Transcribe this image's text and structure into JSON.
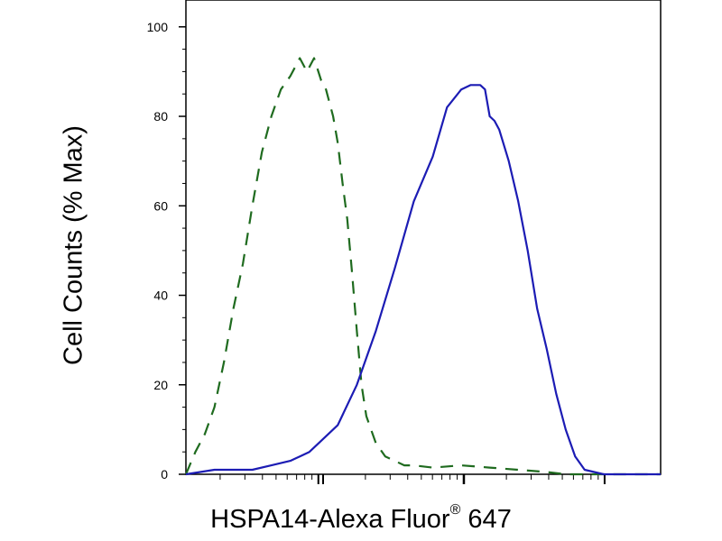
{
  "chart_data": {
    "type": "line",
    "title": "",
    "ylabel": "Cell Counts (% Max)",
    "xlabel_main": "HSPA14-Alexa Fluor",
    "xlabel_mark": "®",
    "xlabel_tail": " 647",
    "ylim": [
      0,
      106
    ],
    "xlim": [
      0,
      100
    ],
    "x_scale": "log-like",
    "yticks": [
      0,
      20,
      40,
      60,
      80,
      100
    ],
    "ytick_labels": [
      "0",
      "20",
      "40",
      "60",
      "80",
      "100"
    ],
    "grid": false,
    "legend": "none",
    "series": [
      {
        "style": "dashed",
        "color": "#1f6b1f",
        "x": [
          0,
          2,
          4,
          6,
          8,
          10,
          12,
          14,
          16,
          18,
          20,
          22,
          24,
          25.5,
          27,
          28.5,
          29.5,
          31,
          32,
          33,
          34,
          35,
          36,
          37,
          38,
          40,
          42,
          44,
          46,
          48,
          52,
          58,
          64,
          70,
          76,
          80,
          82,
          84,
          100
        ],
        "y": [
          0,
          5,
          9,
          15,
          25,
          37,
          47,
          60,
          72,
          80,
          86,
          89,
          93,
          90,
          93,
          88,
          86,
          80,
          74,
          65,
          57,
          45,
          32,
          20,
          13,
          7,
          4,
          3,
          2,
          2,
          1.5,
          2,
          1.5,
          1,
          0.5,
          0,
          0,
          0,
          0
        ]
      },
      {
        "style": "solid",
        "color": "#1c1cb4",
        "x": [
          0,
          3,
          6,
          10,
          14,
          18,
          22,
          24,
          26,
          28,
          32,
          36,
          40,
          44,
          48,
          52,
          55,
          58,
          60,
          62,
          63,
          64,
          65,
          66,
          68,
          70,
          72,
          74,
          76,
          78,
          80,
          82,
          84,
          86,
          88,
          90,
          95,
          100
        ],
        "y": [
          0,
          0.5,
          1,
          1,
          1,
          2,
          3,
          4,
          5,
          7,
          11,
          20,
          32,
          46,
          61,
          71,
          82,
          86,
          87,
          87,
          86,
          80,
          79,
          77,
          70,
          61,
          50,
          37,
          28,
          18,
          10,
          4,
          1,
          0.5,
          0,
          0,
          0,
          0
        ]
      }
    ]
  }
}
